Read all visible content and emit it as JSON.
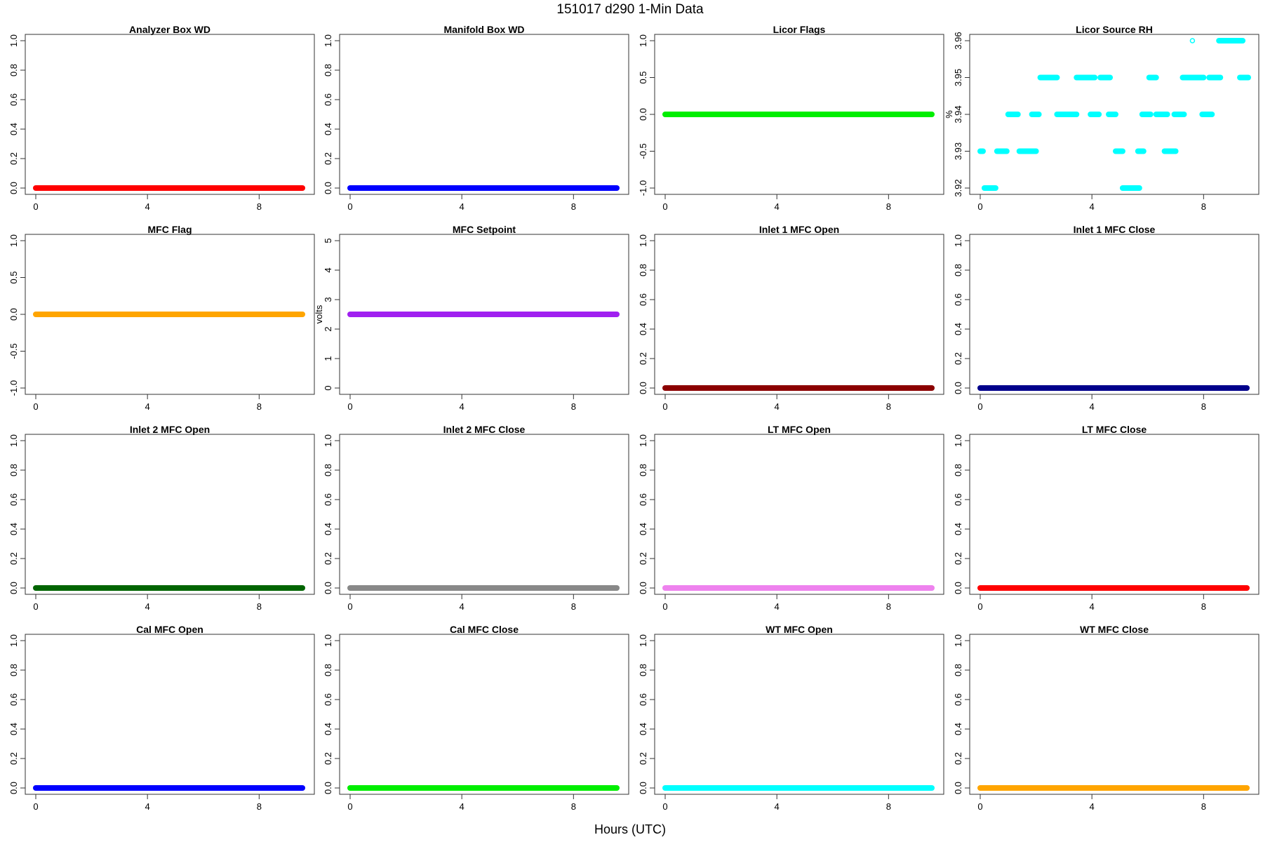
{
  "page": {
    "title": "151017   d290   1-Min Data",
    "xlabel": "Hours (UTC)"
  },
  "chart_data": [
    {
      "type": "scatter",
      "title": "Analyzer Box WD",
      "ylabel": "",
      "color": "#ff0000",
      "xlim": [
        0,
        9.6
      ],
      "ylim": [
        0,
        1
      ],
      "xticks": [
        0,
        4,
        8
      ],
      "yticks": [
        0.0,
        0.2,
        0.4,
        0.6,
        0.8,
        1.0
      ],
      "ytick_labels": [
        "0.0",
        "0.2",
        "0.4",
        "0.6",
        "0.8",
        "1.0"
      ],
      "series": [
        {
          "segments": [
            {
              "x0": 0,
              "x1": 9.55,
              "y": 0
            }
          ]
        }
      ]
    },
    {
      "type": "scatter",
      "title": "Manifold Box WD",
      "ylabel": "",
      "color": "#0000ff",
      "xlim": [
        0,
        9.6
      ],
      "ylim": [
        0,
        1
      ],
      "xticks": [
        0,
        4,
        8
      ],
      "yticks": [
        0.0,
        0.2,
        0.4,
        0.6,
        0.8,
        1.0
      ],
      "ytick_labels": [
        "0.0",
        "0.2",
        "0.4",
        "0.6",
        "0.8",
        "1.0"
      ],
      "series": [
        {
          "segments": [
            {
              "x0": 0,
              "x1": 9.55,
              "y": 0
            }
          ]
        }
      ]
    },
    {
      "type": "scatter",
      "title": "Licor Flags",
      "ylabel": "",
      "color": "#00ee00",
      "xlim": [
        0,
        9.6
      ],
      "ylim": [
        -1,
        1
      ],
      "xticks": [
        0,
        4,
        8
      ],
      "yticks": [
        -1.0,
        -0.5,
        0.0,
        0.5,
        1.0
      ],
      "ytick_labels": [
        "-1.0",
        "-0.5",
        "0.0",
        "0.5",
        "1.0"
      ],
      "series": [
        {
          "segments": [
            {
              "x0": 0,
              "x1": 9.55,
              "y": 0
            }
          ]
        }
      ]
    },
    {
      "type": "scatter",
      "title": "Licor Source RH",
      "ylabel": "%",
      "color": "#00ffff",
      "xlim": [
        0,
        9.6
      ],
      "ylim": [
        3.92,
        3.96
      ],
      "xticks": [
        0,
        4,
        8
      ],
      "yticks": [
        3.92,
        3.93,
        3.94,
        3.95,
        3.96
      ],
      "ytick_labels": [
        "3.92",
        "3.93",
        "3.94",
        "3.95",
        "3.96"
      ],
      "series": [
        {
          "segments": [
            {
              "x0": 0.0,
              "x1": 0.1,
              "y": 3.93
            },
            {
              "x0": 0.15,
              "x1": 0.55,
              "y": 3.92
            },
            {
              "x0": 0.6,
              "x1": 0.95,
              "y": 3.93
            },
            {
              "x0": 1.0,
              "x1": 1.35,
              "y": 3.94
            },
            {
              "x0": 1.4,
              "x1": 2.0,
              "y": 3.93
            },
            {
              "x0": 1.85,
              "x1": 2.1,
              "y": 3.94
            },
            {
              "x0": 2.15,
              "x1": 2.75,
              "y": 3.95
            },
            {
              "x0": 2.75,
              "x1": 3.45,
              "y": 3.94
            },
            {
              "x0": 3.45,
              "x1": 4.1,
              "y": 3.95
            },
            {
              "x0": 3.95,
              "x1": 4.25,
              "y": 3.94
            },
            {
              "x0": 4.3,
              "x1": 4.65,
              "y": 3.95
            },
            {
              "x0": 4.6,
              "x1": 4.85,
              "y": 3.94
            },
            {
              "x0": 4.85,
              "x1": 5.1,
              "y": 3.93
            },
            {
              "x0": 5.1,
              "x1": 5.7,
              "y": 3.92
            },
            {
              "x0": 5.65,
              "x1": 5.85,
              "y": 3.93
            },
            {
              "x0": 5.8,
              "x1": 6.1,
              "y": 3.94
            },
            {
              "x0": 6.05,
              "x1": 6.3,
              "y": 3.95
            },
            {
              "x0": 6.3,
              "x1": 6.7,
              "y": 3.94
            },
            {
              "x0": 6.6,
              "x1": 7.0,
              "y": 3.93
            },
            {
              "x0": 6.95,
              "x1": 7.3,
              "y": 3.94
            },
            {
              "x0": 7.25,
              "x1": 8.0,
              "y": 3.95
            },
            {
              "x0": 7.95,
              "x1": 8.3,
              "y": 3.94
            },
            {
              "x0": 8.2,
              "x1": 8.6,
              "y": 3.95
            },
            {
              "x0": 8.55,
              "x1": 9.4,
              "y": 3.96
            },
            {
              "x0": 9.3,
              "x1": 9.6,
              "y": 3.95
            }
          ],
          "points": [
            {
              "x": 7.6,
              "y": 3.96
            }
          ]
        }
      ]
    },
    {
      "type": "scatter",
      "title": "MFC Flag",
      "ylabel": "",
      "color": "#ffa500",
      "xlim": [
        0,
        9.6
      ],
      "ylim": [
        -1,
        1
      ],
      "xticks": [
        0,
        4,
        8
      ],
      "yticks": [
        -1.0,
        -0.5,
        0.0,
        0.5,
        1.0
      ],
      "ytick_labels": [
        "-1.0",
        "-0.5",
        "0.0",
        "0.5",
        "1.0"
      ],
      "series": [
        {
          "segments": [
            {
              "x0": 0,
              "x1": 9.55,
              "y": 0
            }
          ]
        }
      ]
    },
    {
      "type": "scatter",
      "title": "MFC Setpoint",
      "ylabel": "volts",
      "color": "#a020f0",
      "xlim": [
        0,
        9.6
      ],
      "ylim": [
        0,
        5
      ],
      "xticks": [
        0,
        4,
        8
      ],
      "yticks": [
        0,
        1,
        2,
        3,
        4,
        5
      ],
      "ytick_labels": [
        "0",
        "1",
        "2",
        "3",
        "4",
        "5"
      ],
      "series": [
        {
          "segments": [
            {
              "x0": 0,
              "x1": 9.55,
              "y": 2.5
            }
          ]
        }
      ]
    },
    {
      "type": "scatter",
      "title": "Inlet 1 MFC Open",
      "ylabel": "",
      "color": "#8b0000",
      "xlim": [
        0,
        9.6
      ],
      "ylim": [
        0,
        1
      ],
      "xticks": [
        0,
        4,
        8
      ],
      "yticks": [
        0.0,
        0.2,
        0.4,
        0.6,
        0.8,
        1.0
      ],
      "ytick_labels": [
        "0.0",
        "0.2",
        "0.4",
        "0.6",
        "0.8",
        "1.0"
      ],
      "series": [
        {
          "segments": [
            {
              "x0": 0,
              "x1": 9.55,
              "y": 0
            }
          ]
        }
      ]
    },
    {
      "type": "scatter",
      "title": "Inlet 1 MFC Close",
      "ylabel": "",
      "color": "#00008b",
      "xlim": [
        0,
        9.6
      ],
      "ylim": [
        0,
        1
      ],
      "xticks": [
        0,
        4,
        8
      ],
      "yticks": [
        0.0,
        0.2,
        0.4,
        0.6,
        0.8,
        1.0
      ],
      "ytick_labels": [
        "0.0",
        "0.2",
        "0.4",
        "0.6",
        "0.8",
        "1.0"
      ],
      "series": [
        {
          "segments": [
            {
              "x0": 0,
              "x1": 9.55,
              "y": 0
            }
          ]
        }
      ]
    },
    {
      "type": "scatter",
      "title": "Inlet 2 MFC Open",
      "ylabel": "",
      "color": "#006400",
      "xlim": [
        0,
        9.6
      ],
      "ylim": [
        0,
        1
      ],
      "xticks": [
        0,
        4,
        8
      ],
      "yticks": [
        0.0,
        0.2,
        0.4,
        0.6,
        0.8,
        1.0
      ],
      "ytick_labels": [
        "0.0",
        "0.2",
        "0.4",
        "0.6",
        "0.8",
        "1.0"
      ],
      "series": [
        {
          "segments": [
            {
              "x0": 0,
              "x1": 9.55,
              "y": 0
            }
          ]
        }
      ]
    },
    {
      "type": "scatter",
      "title": "Inlet 2 MFC Close",
      "ylabel": "",
      "color": "#888888",
      "xlim": [
        0,
        9.6
      ],
      "ylim": [
        0,
        1
      ],
      "xticks": [
        0,
        4,
        8
      ],
      "yticks": [
        0.0,
        0.2,
        0.4,
        0.6,
        0.8,
        1.0
      ],
      "ytick_labels": [
        "0.0",
        "0.2",
        "0.4",
        "0.6",
        "0.8",
        "1.0"
      ],
      "series": [
        {
          "segments": [
            {
              "x0": 0,
              "x1": 9.55,
              "y": 0
            }
          ]
        }
      ]
    },
    {
      "type": "scatter",
      "title": "LT MFC Open",
      "ylabel": "",
      "color": "#ee82ee",
      "xlim": [
        0,
        9.6
      ],
      "ylim": [
        0,
        1
      ],
      "xticks": [
        0,
        4,
        8
      ],
      "yticks": [
        0.0,
        0.2,
        0.4,
        0.6,
        0.8,
        1.0
      ],
      "ytick_labels": [
        "0.0",
        "0.2",
        "0.4",
        "0.6",
        "0.8",
        "1.0"
      ],
      "series": [
        {
          "segments": [
            {
              "x0": 0,
              "x1": 9.55,
              "y": 0
            }
          ]
        }
      ]
    },
    {
      "type": "scatter",
      "title": "LT MFC Close",
      "ylabel": "",
      "color": "#ff0000",
      "xlim": [
        0,
        9.6
      ],
      "ylim": [
        0,
        1
      ],
      "xticks": [
        0,
        4,
        8
      ],
      "yticks": [
        0.0,
        0.2,
        0.4,
        0.6,
        0.8,
        1.0
      ],
      "ytick_labels": [
        "0.0",
        "0.2",
        "0.4",
        "0.6",
        "0.8",
        "1.0"
      ],
      "series": [
        {
          "segments": [
            {
              "x0": 0,
              "x1": 9.55,
              "y": 0
            }
          ]
        }
      ]
    },
    {
      "type": "scatter",
      "title": "Cal MFC Open",
      "ylabel": "",
      "color": "#0000ff",
      "xlim": [
        0,
        9.6
      ],
      "ylim": [
        0,
        1
      ],
      "xticks": [
        0,
        4,
        8
      ],
      "yticks": [
        0.0,
        0.2,
        0.4,
        0.6,
        0.8,
        1.0
      ],
      "ytick_labels": [
        "0.0",
        "0.2",
        "0.4",
        "0.6",
        "0.8",
        "1.0"
      ],
      "series": [
        {
          "segments": [
            {
              "x0": 0,
              "x1": 9.55,
              "y": 0
            }
          ]
        }
      ]
    },
    {
      "type": "scatter",
      "title": "Cal MFC Close",
      "ylabel": "",
      "color": "#00ee00",
      "xlim": [
        0,
        9.6
      ],
      "ylim": [
        0,
        1
      ],
      "xticks": [
        0,
        4,
        8
      ],
      "yticks": [
        0.0,
        0.2,
        0.4,
        0.6,
        0.8,
        1.0
      ],
      "ytick_labels": [
        "0.0",
        "0.2",
        "0.4",
        "0.6",
        "0.8",
        "1.0"
      ],
      "series": [
        {
          "segments": [
            {
              "x0": 0,
              "x1": 9.55,
              "y": 0
            }
          ]
        }
      ]
    },
    {
      "type": "scatter",
      "title": "WT MFC Open",
      "ylabel": "",
      "color": "#00ffff",
      "xlim": [
        0,
        9.6
      ],
      "ylim": [
        0,
        1
      ],
      "xticks": [
        0,
        4,
        8
      ],
      "yticks": [
        0.0,
        0.2,
        0.4,
        0.6,
        0.8,
        1.0
      ],
      "ytick_labels": [
        "0.0",
        "0.2",
        "0.4",
        "0.6",
        "0.8",
        "1.0"
      ],
      "series": [
        {
          "segments": [
            {
              "x0": 0,
              "x1": 9.55,
              "y": 0
            }
          ]
        }
      ]
    },
    {
      "type": "scatter",
      "title": "WT MFC Close",
      "ylabel": "",
      "color": "#ffa500",
      "xlim": [
        0,
        9.6
      ],
      "ylim": [
        0,
        1
      ],
      "xticks": [
        0,
        4,
        8
      ],
      "yticks": [
        0.0,
        0.2,
        0.4,
        0.6,
        0.8,
        1.0
      ],
      "ytick_labels": [
        "0.0",
        "0.2",
        "0.4",
        "0.6",
        "0.8",
        "1.0"
      ],
      "series": [
        {
          "segments": [
            {
              "x0": 0,
              "x1": 9.55,
              "y": 0
            }
          ]
        }
      ]
    }
  ]
}
